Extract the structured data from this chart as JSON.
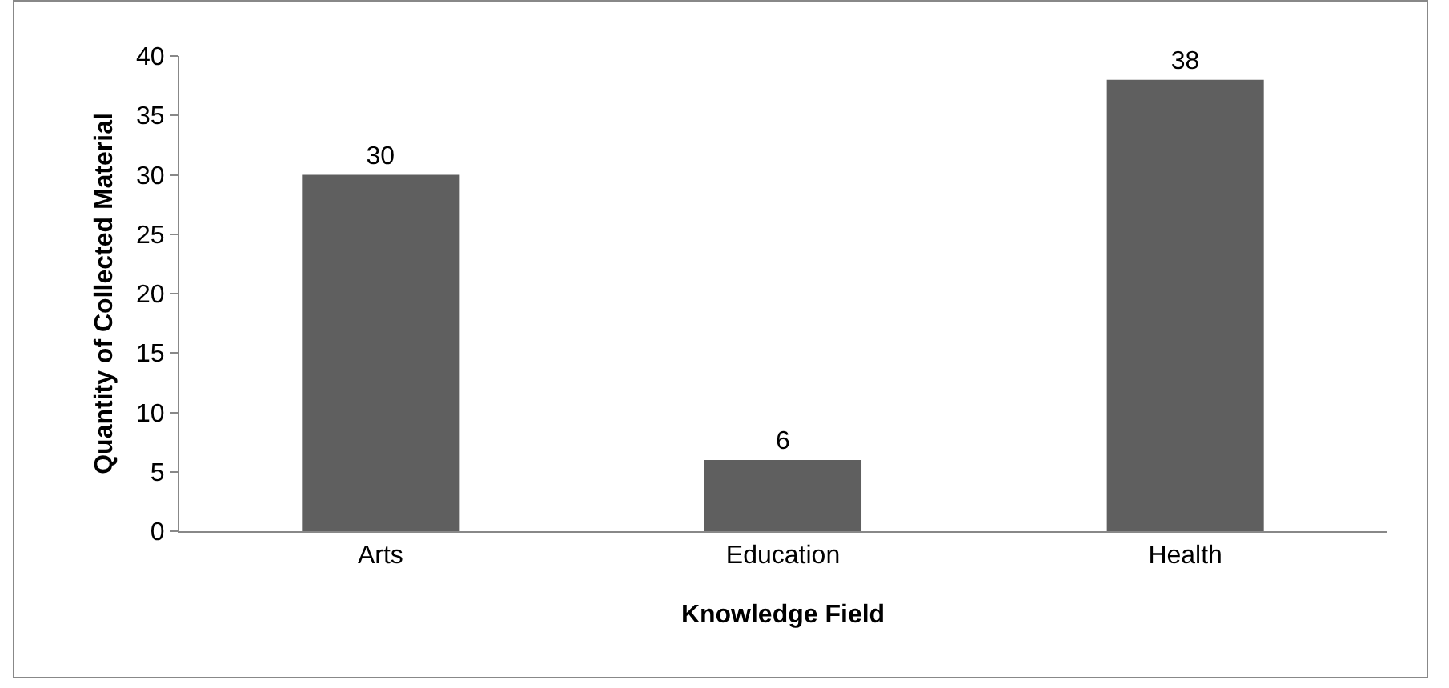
{
  "chart_data": {
    "type": "bar",
    "xlabel": "Knowledge Field",
    "ylabel": "Quantity of Collected Material",
    "categories": [
      "Arts",
      "Education",
      "Health"
    ],
    "values": [
      30,
      6,
      38
    ],
    "color": "#5f5f5f",
    "ylim": [
      0,
      40
    ],
    "yticks": [
      0,
      5,
      10,
      15,
      20,
      25,
      30,
      35,
      40
    ],
    "grid": false,
    "data_labels": true
  }
}
